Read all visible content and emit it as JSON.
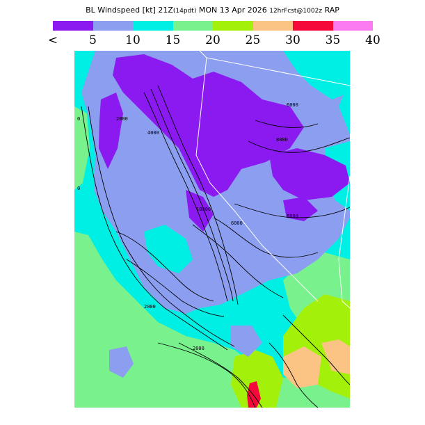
{
  "title": {
    "main": "BL Windspeed [kt] 21Z",
    "pdt": "(14pdt)",
    "date": "MON 13 Apr 2026",
    "forecast": "12hrFcst@1002z",
    "model": "RAP"
  },
  "legend": {
    "colors": [
      "#8a1af0",
      "#8c9eef",
      "#00efe5",
      "#79f28d",
      "#a3f00b",
      "#fbc384",
      "#f5083a",
      "#fb7cf0"
    ],
    "labels": [
      "<",
      "5",
      "10",
      "15",
      "20",
      "25",
      "30",
      "35",
      "40"
    ]
  },
  "map": {
    "contour_labels": [
      "0",
      "2000",
      "4000",
      "6000",
      "8000",
      "10000",
      "2000",
      "6000",
      "8000",
      "2000",
      "0"
    ]
  }
}
